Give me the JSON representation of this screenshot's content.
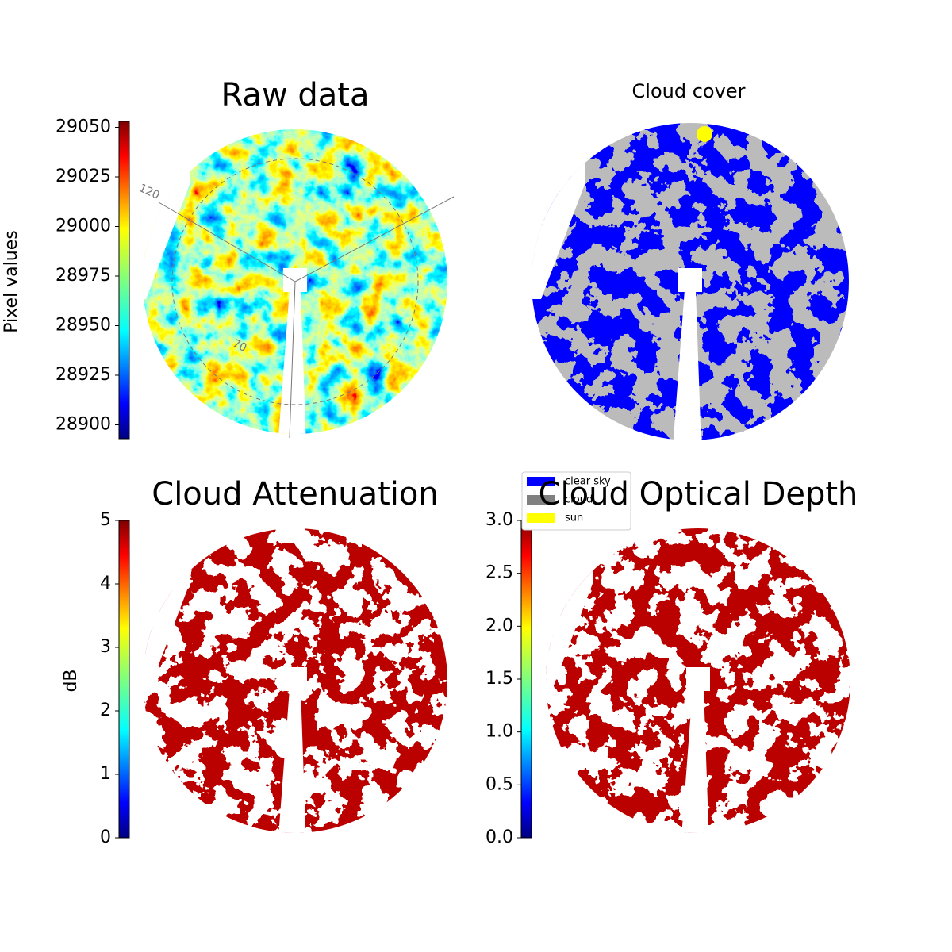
{
  "chart_data": [
    {
      "type": "image",
      "title": "Raw data",
      "ylabel": "Pixel values",
      "colormap": "jet",
      "ylim": [
        28893,
        29053
      ],
      "yticks": [
        28900,
        28925,
        28950,
        28975,
        29000,
        29025,
        29050
      ],
      "annotations": [
        "120",
        "70"
      ]
    },
    {
      "type": "mask",
      "title": "Cloud cover",
      "series": [
        {
          "name": "clear sky",
          "color": "#0000ff"
        },
        {
          "name": "cloud",
          "color": "#808080"
        },
        {
          "name": "sun",
          "color": "#ffff00"
        }
      ]
    },
    {
      "type": "image",
      "title": "Cloud Attenuation",
      "ylabel": "dB",
      "colormap": "jet",
      "ylim": [
        0,
        5
      ],
      "yticks": [
        0,
        1,
        2,
        3,
        4,
        5
      ]
    },
    {
      "type": "image",
      "title": "Cloud Optical Depth",
      "colormap": "jet",
      "ylim": [
        0,
        3
      ],
      "yticks": [
        {
          "value": 0,
          "label": "0.0"
        },
        0.5,
        {
          "value": 1,
          "label": "1.0"
        },
        1.5,
        {
          "value": 2,
          "label": "2.0"
        },
        2.5,
        {
          "value": 3,
          "label": "3.0"
        }
      ]
    }
  ]
}
